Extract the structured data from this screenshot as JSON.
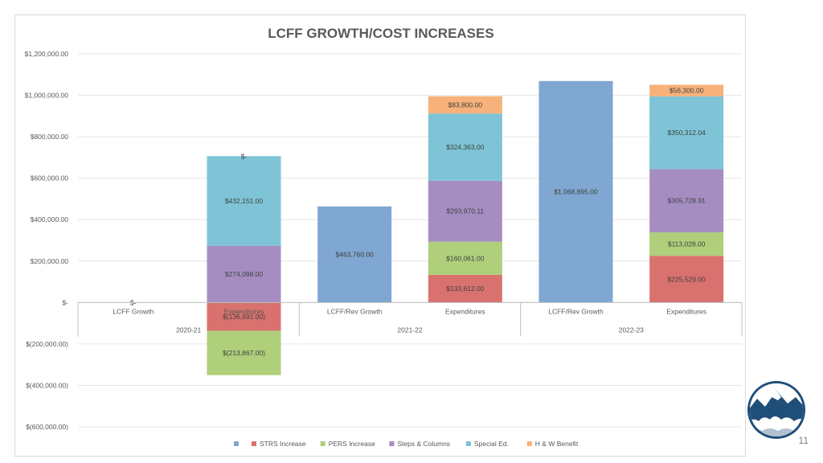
{
  "slide": {
    "page_number": "11"
  },
  "colors": {
    "lcff": "#7fa7d1",
    "strs": "#d9726f",
    "pers": "#afcf7b",
    "steps": "#a58dc2",
    "special": "#7ec4d6",
    "hw": "#f6b27a",
    "grid": "#e6e6e6",
    "axis_text": "#595959",
    "title": "#595959",
    "logo_ring": "#1f4e79",
    "logo_sky": "#ffffff"
  },
  "chart_data": {
    "type": "bar",
    "stacked": true,
    "title": "LCFF GROWTH/COST INCREASES",
    "ylim": [
      -600000,
      1200000
    ],
    "ytick_values": [
      1200000,
      1000000,
      800000,
      600000,
      400000,
      200000,
      0,
      -200000,
      -400000,
      -600000
    ],
    "ytick_labels": [
      "$1,200,000.00",
      "$1,000,000.00",
      "$800,000.00",
      "$600,000.00",
      "$400,000.00",
      "$200,000.00",
      "$-",
      "$(200,000.00)",
      "$(400,000.00)",
      "$(600,000.00)"
    ],
    "grid": true,
    "legend_position": "bottom",
    "categories": [
      "LCFF Growth",
      "Expenditures",
      "LCFF/Rev Growth",
      "Expenditures",
      "LCFF/Rev Growth",
      "Expenditures"
    ],
    "groups": [
      "2020-21",
      "2021-22",
      "2022-23"
    ],
    "series": [
      {
        "key": "lcff",
        "name": "",
        "values": [
          0,
          null,
          463760,
          null,
          1068895,
          null
        ],
        "labels": [
          "$-",
          "",
          "$463,760.00",
          "",
          "$1,068,895.00",
          ""
        ]
      },
      {
        "key": "strs",
        "name": "STRS Increase",
        "values": [
          null,
          -136691,
          null,
          133612,
          null,
          225529
        ],
        "labels": [
          "",
          "$(136,691.00)",
          "",
          "$133,612.00",
          "",
          "$225,529.00"
        ]
      },
      {
        "key": "pers",
        "name": "PERS Increase",
        "values": [
          null,
          -213867,
          null,
          160061,
          null,
          113028
        ],
        "labels": [
          "",
          "$(213,867.00)",
          "",
          "$160,061.00",
          "",
          "$113,028.00"
        ]
      },
      {
        "key": "steps",
        "name": "Steps & Columns",
        "values": [
          null,
          274098,
          null,
          293970.11,
          null,
          305728.91
        ],
        "labels": [
          "",
          "$274,098.00",
          "",
          "$293,970.11",
          "",
          "$305,728.91"
        ]
      },
      {
        "key": "special",
        "name": "Special Ed.",
        "values": [
          null,
          432151,
          null,
          324363,
          null,
          350312.04
        ],
        "labels": [
          "",
          "$432,151.00",
          "",
          "$324,363.00",
          "",
          "$350,312.04"
        ]
      },
      {
        "key": "hw",
        "name": "H & W Benefit",
        "values": [
          null,
          0,
          null,
          83800,
          null,
          56300
        ],
        "labels": [
          "",
          "$-",
          "",
          "$83,800.00",
          "",
          "$56,300.00"
        ]
      }
    ]
  }
}
